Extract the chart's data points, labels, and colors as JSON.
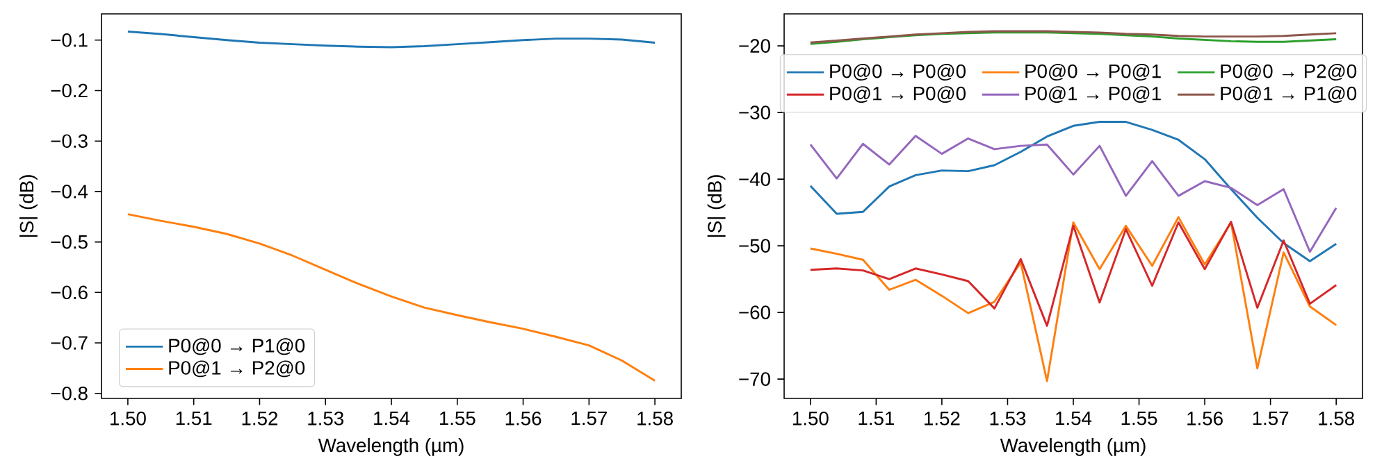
{
  "chart_data": [
    {
      "type": "line",
      "xlabel": "Wavelength (µm)",
      "ylabel": "|S| (dB)",
      "legend": "bottom left",
      "x": [
        1.5,
        1.505,
        1.51,
        1.515,
        1.52,
        1.525,
        1.53,
        1.535,
        1.54,
        1.545,
        1.55,
        1.555,
        1.56,
        1.565,
        1.57,
        1.575,
        1.58
      ],
      "series": [
        {
          "name": "P0@0 → P1@0",
          "color": "#1f77b4",
          "values": [
            -0.083,
            -0.088,
            -0.094,
            -0.1,
            -0.105,
            -0.108,
            -0.111,
            -0.113,
            -0.114,
            -0.112,
            -0.108,
            -0.104,
            -0.1,
            -0.097,
            -0.097,
            -0.099,
            -0.105
          ]
        },
        {
          "name": "P0@1 → P2@0",
          "color": "#ff7f0e",
          "values": [
            -0.445,
            -0.458,
            -0.47,
            -0.484,
            -0.503,
            -0.527,
            -0.555,
            -0.583,
            -0.608,
            -0.63,
            -0.645,
            -0.659,
            -0.672,
            -0.688,
            -0.705,
            -0.735,
            -0.775
          ]
        }
      ],
      "xlim": [
        1.496,
        1.584
      ],
      "ylim": [
        -0.81,
        -0.048
      ],
      "xticks": [
        {
          "value": 1.5,
          "label": "1.50"
        },
        {
          "value": 1.51,
          "label": "1.51"
        },
        {
          "value": 1.52,
          "label": "1.52"
        },
        {
          "value": 1.53,
          "label": "1.53"
        },
        {
          "value": 1.54,
          "label": "1.54"
        },
        {
          "value": 1.55,
          "label": "1.55"
        },
        {
          "value": 1.56,
          "label": "1.56"
        },
        {
          "value": 1.57,
          "label": "1.57"
        },
        {
          "value": 1.58,
          "label": "1.58"
        }
      ],
      "yticks": [
        {
          "value": -0.8,
          "label": "−0.8"
        },
        {
          "value": -0.7,
          "label": "−0.7"
        },
        {
          "value": -0.6,
          "label": "−0.6"
        },
        {
          "value": -0.5,
          "label": "−0.5"
        },
        {
          "value": -0.4,
          "label": "−0.4"
        },
        {
          "value": -0.3,
          "label": "−0.3"
        },
        {
          "value": -0.2,
          "label": "−0.2"
        },
        {
          "value": -0.1,
          "label": "−0.1"
        }
      ]
    },
    {
      "type": "line",
      "xlabel": "Wavelength (µm)",
      "ylabel": "|S| (dB)",
      "legend": "top",
      "x": [
        1.5,
        1.504,
        1.508,
        1.512,
        1.516,
        1.52,
        1.524,
        1.528,
        1.532,
        1.536,
        1.54,
        1.544,
        1.548,
        1.552,
        1.556,
        1.56,
        1.564,
        1.568,
        1.572,
        1.576,
        1.58
      ],
      "series": [
        {
          "name": "P0@0 → P0@0",
          "color": "#1f77b4",
          "values": [
            -41.0,
            -45.2,
            -44.9,
            -41.1,
            -39.4,
            -38.7,
            -38.8,
            -37.9,
            -35.9,
            -33.6,
            -32.0,
            -31.4,
            -31.4,
            -32.6,
            -34.1,
            -37.0,
            -41.5,
            -45.8,
            -49.6,
            -52.3,
            -49.7
          ]
        },
        {
          "name": "P0@0 → P0@1",
          "color": "#ff7f0e",
          "values": [
            -50.4,
            -51.2,
            -52.1,
            -56.6,
            -55.1,
            -57.5,
            -60.1,
            -58.4,
            -52.5,
            -70.3,
            -46.5,
            -53.5,
            -47.0,
            -53.0,
            -45.7,
            -52.8,
            -46.5,
            -68.4,
            -51.0,
            -59.1,
            -61.9
          ]
        },
        {
          "name": "P0@0 → P2@0",
          "color": "#2ca02c",
          "values": [
            -19.7,
            -19.4,
            -19.0,
            -18.7,
            -18.4,
            -18.2,
            -18.1,
            -18.0,
            -18.0,
            -18.0,
            -18.1,
            -18.2,
            -18.4,
            -18.6,
            -18.9,
            -19.1,
            -19.3,
            -19.4,
            -19.4,
            -19.2,
            -19.0
          ]
        },
        {
          "name": "P0@1 → P0@0",
          "color": "#d62728",
          "values": [
            -53.6,
            -53.4,
            -53.7,
            -55.0,
            -53.4,
            -54.3,
            -55.3,
            -59.4,
            -52.0,
            -62.0,
            -47.0,
            -58.5,
            -47.5,
            -56.0,
            -46.5,
            -53.5,
            -46.4,
            -59.3,
            -49.2,
            -58.7,
            -55.9
          ]
        },
        {
          "name": "P0@1 → P0@1",
          "color": "#9467bd",
          "values": [
            -34.8,
            -39.9,
            -34.7,
            -37.8,
            -33.5,
            -36.2,
            -33.9,
            -35.5,
            -35.0,
            -34.8,
            -39.3,
            -35.0,
            -42.5,
            -37.3,
            -42.5,
            -40.3,
            -41.3,
            -43.9,
            -41.5,
            -50.9,
            -44.3
          ]
        },
        {
          "name": "P0@1 → P1@0",
          "color": "#8c564b",
          "values": [
            -19.5,
            -19.2,
            -18.9,
            -18.6,
            -18.3,
            -18.1,
            -17.9,
            -17.8,
            -17.8,
            -17.8,
            -17.9,
            -18.0,
            -18.2,
            -18.3,
            -18.5,
            -18.6,
            -18.6,
            -18.6,
            -18.5,
            -18.3,
            -18.1
          ]
        }
      ],
      "xlim": [
        1.496,
        1.584
      ],
      "ylim": [
        -72.9,
        -15.2
      ],
      "xticks": [
        {
          "value": 1.5,
          "label": "1.50"
        },
        {
          "value": 1.51,
          "label": "1.51"
        },
        {
          "value": 1.52,
          "label": "1.52"
        },
        {
          "value": 1.53,
          "label": "1.53"
        },
        {
          "value": 1.54,
          "label": "1.54"
        },
        {
          "value": 1.55,
          "label": "1.55"
        },
        {
          "value": 1.56,
          "label": "1.56"
        },
        {
          "value": 1.57,
          "label": "1.57"
        },
        {
          "value": 1.58,
          "label": "1.58"
        }
      ],
      "yticks": [
        {
          "value": -70,
          "label": "−70"
        },
        {
          "value": -60,
          "label": "−60"
        },
        {
          "value": -50,
          "label": "−50"
        },
        {
          "value": -40,
          "label": "−40"
        },
        {
          "value": -30,
          "label": "−30"
        },
        {
          "value": -20,
          "label": "−20"
        }
      ]
    }
  ]
}
